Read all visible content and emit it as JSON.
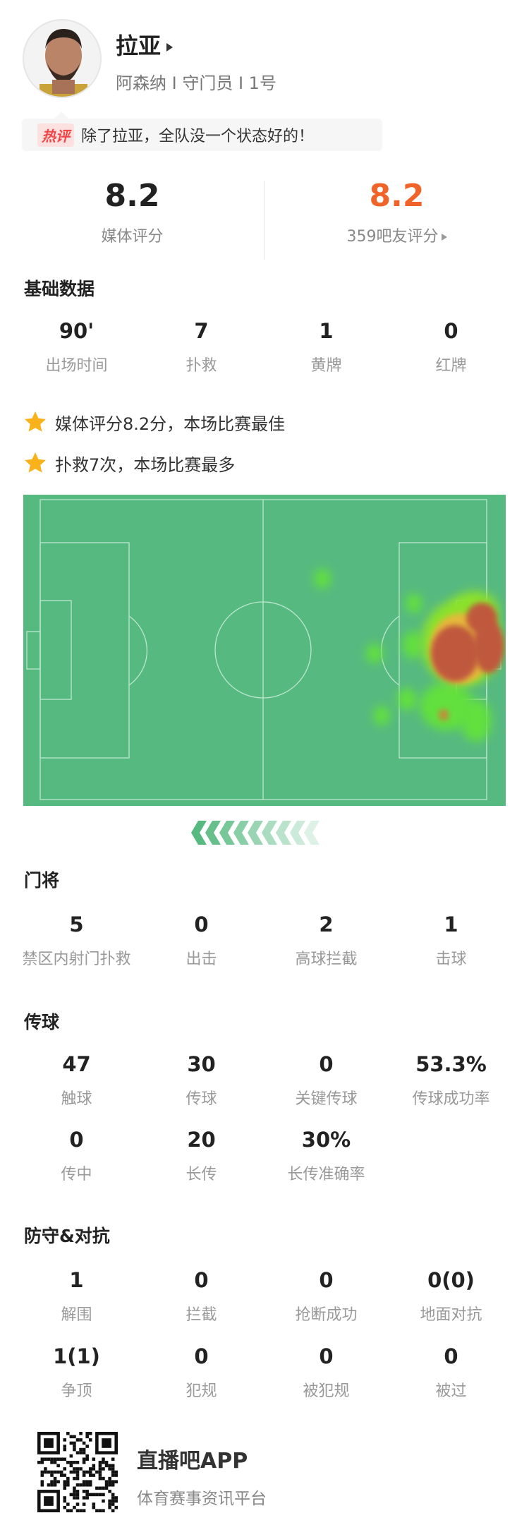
{
  "player": {
    "name": "拉亚",
    "info": "阿森纳 I 守门员 I 1号"
  },
  "comment": {
    "tag": "热评",
    "text": "除了拉亚，全队没一个状态好的！"
  },
  "ratings": {
    "media_value": "8.2",
    "media_label": "媒体评分",
    "fan_value": "8.2",
    "fan_label": "359吧友评分",
    "fan_color": "#f0642a"
  },
  "basic": {
    "title": "基础数据",
    "items": [
      {
        "v": "90'",
        "l": "出场时间"
      },
      {
        "v": "7",
        "l": "扑救"
      },
      {
        "v": "1",
        "l": "黄牌"
      },
      {
        "v": "0",
        "l": "红牌"
      }
    ]
  },
  "highlights": [
    "媒体评分8.2分，本场比赛最佳",
    "扑救7次，本场比赛最多"
  ],
  "heatmap": {
    "pitch_color": "#56b980",
    "hot_color": "#c0583c"
  },
  "goalkeeping": {
    "title": "门将",
    "items": [
      {
        "v": "5",
        "l": "禁区内射门扑救"
      },
      {
        "v": "0",
        "l": "出击"
      },
      {
        "v": "2",
        "l": "高球拦截"
      },
      {
        "v": "1",
        "l": "击球"
      }
    ]
  },
  "passing": {
    "title": "传球",
    "items": [
      {
        "v": "47",
        "l": "触球"
      },
      {
        "v": "30",
        "l": "传球"
      },
      {
        "v": "0",
        "l": "关键传球"
      },
      {
        "v": "53.3%",
        "l": "传球成功率"
      },
      {
        "v": "0",
        "l": "传中"
      },
      {
        "v": "20",
        "l": "长传"
      },
      {
        "v": "30%",
        "l": "长传准确率"
      }
    ]
  },
  "defense": {
    "title": "防守&对抗",
    "items": [
      {
        "v": "1",
        "l": "解围"
      },
      {
        "v": "0",
        "l": "拦截"
      },
      {
        "v": "0",
        "l": "抢断成功"
      },
      {
        "v": "0(0)",
        "l": "地面对抗"
      },
      {
        "v": "1(1)",
        "l": "争顶"
      },
      {
        "v": "0",
        "l": "犯规"
      },
      {
        "v": "0",
        "l": "被犯规"
      },
      {
        "v": "0",
        "l": "被过"
      }
    ]
  },
  "footer": {
    "app": "直播吧APP",
    "slogan": "体育赛事资讯平台"
  }
}
